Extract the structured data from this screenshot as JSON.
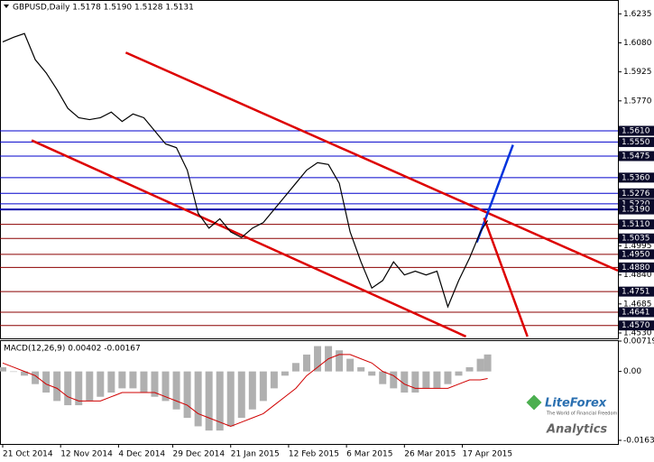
{
  "chart_data": {
    "type": "line",
    "title": "GBPUSD,Daily  1.5178 1.5190 1.5128 1.5131",
    "x": [
      0,
      3,
      6,
      9,
      12,
      15,
      18,
      21,
      24,
      27,
      30,
      33,
      36,
      39,
      42,
      45,
      48,
      51,
      54,
      57,
      60,
      63,
      66,
      69,
      72,
      75,
      78,
      81,
      84,
      87,
      90,
      93,
      96,
      99,
      102,
      105,
      108,
      111,
      114,
      117,
      120,
      123,
      126,
      129,
      132,
      134
    ],
    "series": [
      {
        "name": "GBPUSD",
        "color": "#000000",
        "values": [
          1.6085,
          1.611,
          1.613,
          1.599,
          1.592,
          1.583,
          1.573,
          1.568,
          1.567,
          1.568,
          1.571,
          1.566,
          1.57,
          1.568,
          1.561,
          1.554,
          1.552,
          1.54,
          1.517,
          1.509,
          1.514,
          1.507,
          1.504,
          1.509,
          1.512,
          1.519,
          1.526,
          1.533,
          1.54,
          1.544,
          1.543,
          1.533,
          1.507,
          1.491,
          1.477,
          1.481,
          1.491,
          1.484,
          1.486,
          1.484,
          1.486,
          1.467,
          1.481,
          1.493,
          1.507,
          1.5131
        ]
      }
    ],
    "xlim": [
      0,
      170
    ],
    "xticks": [
      {
        "value": 0,
        "label": "21 Oct 2014"
      },
      {
        "value": 16,
        "label": "12 Nov 2014"
      },
      {
        "value": 32,
        "label": "4 Dec 2014"
      },
      {
        "value": 47,
        "label": "29 Dec 2014"
      },
      {
        "value": 63,
        "label": "21 Jan 2015"
      },
      {
        "value": 79,
        "label": "12 Feb 2015"
      },
      {
        "value": 95,
        "label": "6 Mar 2015"
      },
      {
        "value": 111,
        "label": "26 Mar 2015"
      },
      {
        "value": 127,
        "label": "17 Apr 2015"
      }
    ],
    "ylim": [
      1.4501,
      1.6309
    ],
    "yticks": [
      1.6235,
      {
        "value": 1.608,
        "label": "1.6080"
      },
      1.5925,
      {
        "value": 1.577,
        "label": "1.5770"
      },
      1.4995,
      {
        "value": 1.484,
        "label": "1.4840"
      },
      1.4685,
      {
        "value": 1.453,
        "label": "1.4530"
      }
    ],
    "levels": [
      {
        "value": 1.561,
        "label": "1.5610",
        "color": "#0000cc"
      },
      {
        "value": 1.555,
        "label": "1.5550",
        "color": "#0000cc"
      },
      {
        "value": 1.5475,
        "color": "#0000cc"
      },
      {
        "value": 1.536,
        "label": "1.5360",
        "color": "#0000cc"
      },
      {
        "value": 1.5276,
        "color": "#0000cc"
      },
      {
        "value": 1.522,
        "label": "1.5220",
        "color": "#0000cc"
      },
      {
        "value": 1.519,
        "label": "1.5190",
        "color": "#0000aa"
      },
      {
        "value": 1.511,
        "label": "1.5110",
        "color": "#8b0000"
      },
      {
        "value": 1.5035,
        "color": "#8b0000"
      },
      {
        "value": 1.495,
        "label": "1.4950",
        "color": "#8b0000"
      },
      {
        "value": 1.488,
        "label": "1.4880",
        "color": "#8b0000"
      },
      {
        "value": 1.4751,
        "color": "#8b0000"
      },
      {
        "value": 1.4641,
        "color": "#8b0000"
      },
      {
        "value": 1.457,
        "label": "1.4570",
        "color": "#8b0000"
      }
    ],
    "trendlines": [
      {
        "color": "#dd0000",
        "x": [
          34,
          170
        ],
        "values": [
          1.6028,
          1.4863
        ]
      },
      {
        "color": "#dd0000",
        "x": [
          8,
          128
        ],
        "values": [
          1.5559,
          1.4511
        ]
      },
      {
        "color": "#0033dd",
        "x": [
          131,
          141
        ],
        "values": [
          1.5014,
          1.5535
        ]
      },
      {
        "color": "#dd0000",
        "x": [
          133,
          145
        ],
        "values": [
          1.5145,
          1.4511
        ]
      }
    ],
    "macd": {
      "title": "MACD(12,26,9) 0.00402 -0.00167",
      "histogram": [
        0.001,
        0.0,
        -0.001,
        -0.003,
        -0.005,
        -0.007,
        -0.008,
        -0.008,
        -0.007,
        -0.006,
        -0.005,
        -0.004,
        -0.004,
        -0.005,
        -0.006,
        -0.007,
        -0.009,
        -0.011,
        -0.013,
        -0.014,
        -0.014,
        -0.013,
        -0.011,
        -0.009,
        -0.007,
        -0.004,
        -0.001,
        0.002,
        0.004,
        0.006,
        0.006,
        0.005,
        0.003,
        0.001,
        -0.001,
        -0.003,
        -0.004,
        -0.005,
        -0.005,
        -0.004,
        -0.004,
        -0.003,
        -0.001,
        0.001,
        0.003,
        0.00402
      ],
      "signal": [
        0.002,
        0.001,
        0.0,
        -0.001,
        -0.003,
        -0.004,
        -0.006,
        -0.007,
        -0.007,
        -0.007,
        -0.006,
        -0.005,
        -0.005,
        -0.005,
        -0.005,
        -0.006,
        -0.007,
        -0.008,
        -0.01,
        -0.011,
        -0.012,
        -0.013,
        -0.012,
        -0.011,
        -0.01,
        -0.008,
        -0.006,
        -0.004,
        -0.001,
        0.001,
        0.003,
        0.004,
        0.004,
        0.003,
        0.002,
        0.0,
        -0.001,
        -0.003,
        -0.004,
        -0.004,
        -0.004,
        -0.004,
        -0.003,
        -0.002,
        -0.002,
        -0.00167
      ],
      "ylim": [
        -0.01632,
        0.00719
      ],
      "yticks": [
        0.00719,
        {
          "value": 0,
          "label": "0.00"
        },
        -0.01632
      ]
    },
    "logo": {
      "brand": "LiteForex",
      "tagline": "The World of Financial Freedom",
      "product": "Analytics"
    }
  }
}
